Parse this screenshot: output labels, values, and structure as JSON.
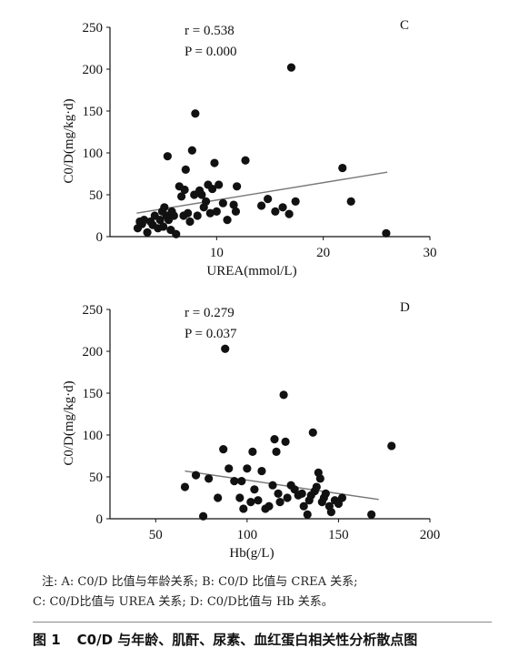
{
  "chart_data": [
    {
      "type": "scatter",
      "panel_label": "C",
      "annotation_r": "r = 0.538",
      "annotation_p": "P = 0.000",
      "xlabel": "UREA(mmol/L)",
      "ylabel": "C0/D(mg/kg·d)",
      "xlim": [
        0,
        30
      ],
      "ylim": [
        0,
        250
      ],
      "xticks": [
        "10",
        "20",
        "30"
      ],
      "yticks": [
        "0",
        "50",
        "100",
        "150",
        "200",
        "250"
      ],
      "trend_line": {
        "x": [
          2.5,
          26
        ],
        "y": [
          28,
          77
        ]
      },
      "points": [
        {
          "x": 2.6,
          "y": 10
        },
        {
          "x": 2.8,
          "y": 18
        },
        {
          "x": 3.0,
          "y": 15
        },
        {
          "x": 3.2,
          "y": 20
        },
        {
          "x": 3.5,
          "y": 5
        },
        {
          "x": 3.8,
          "y": 18
        },
        {
          "x": 4.0,
          "y": 14
        },
        {
          "x": 4.2,
          "y": 25
        },
        {
          "x": 4.5,
          "y": 10
        },
        {
          "x": 4.7,
          "y": 20
        },
        {
          "x": 4.9,
          "y": 30
        },
        {
          "x": 5.0,
          "y": 12
        },
        {
          "x": 5.1,
          "y": 35
        },
        {
          "x": 5.3,
          "y": 25
        },
        {
          "x": 5.4,
          "y": 96
        },
        {
          "x": 5.5,
          "y": 20
        },
        {
          "x": 5.7,
          "y": 8
        },
        {
          "x": 5.8,
          "y": 30
        },
        {
          "x": 6.0,
          "y": 25
        },
        {
          "x": 6.2,
          "y": 3
        },
        {
          "x": 6.5,
          "y": 60
        },
        {
          "x": 6.7,
          "y": 48
        },
        {
          "x": 6.9,
          "y": 25
        },
        {
          "x": 7.0,
          "y": 56
        },
        {
          "x": 7.1,
          "y": 80
        },
        {
          "x": 7.3,
          "y": 28
        },
        {
          "x": 7.5,
          "y": 18
        },
        {
          "x": 7.7,
          "y": 103
        },
        {
          "x": 7.9,
          "y": 50
        },
        {
          "x": 8.0,
          "y": 147
        },
        {
          "x": 8.2,
          "y": 25
        },
        {
          "x": 8.4,
          "y": 55
        },
        {
          "x": 8.6,
          "y": 50
        },
        {
          "x": 8.8,
          "y": 35
        },
        {
          "x": 9.0,
          "y": 42
        },
        {
          "x": 9.2,
          "y": 62
        },
        {
          "x": 9.4,
          "y": 28
        },
        {
          "x": 9.6,
          "y": 57
        },
        {
          "x": 9.8,
          "y": 88
        },
        {
          "x": 10.0,
          "y": 30
        },
        {
          "x": 10.2,
          "y": 62
        },
        {
          "x": 10.6,
          "y": 40
        },
        {
          "x": 11.0,
          "y": 20
        },
        {
          "x": 11.6,
          "y": 38
        },
        {
          "x": 11.8,
          "y": 30
        },
        {
          "x": 11.9,
          "y": 60
        },
        {
          "x": 12.7,
          "y": 91
        },
        {
          "x": 14.2,
          "y": 37
        },
        {
          "x": 14.8,
          "y": 45
        },
        {
          "x": 15.5,
          "y": 30
        },
        {
          "x": 16.2,
          "y": 35
        },
        {
          "x": 16.8,
          "y": 27
        },
        {
          "x": 17.0,
          "y": 202
        },
        {
          "x": 17.4,
          "y": 42
        },
        {
          "x": 21.8,
          "y": 82
        },
        {
          "x": 22.6,
          "y": 42
        },
        {
          "x": 25.9,
          "y": 4
        }
      ]
    },
    {
      "type": "scatter",
      "panel_label": "D",
      "annotation_r": "r = 0.279",
      "annotation_p": "P = 0.037",
      "xlabel": "Hb(g/L)",
      "ylabel": "C0/D(mg/kg·d)",
      "xlim": [
        25,
        200
      ],
      "ylim": [
        0,
        250
      ],
      "xticks": [
        "50",
        "100",
        "150",
        "200"
      ],
      "yticks": [
        "0",
        "50",
        "100",
        "150",
        "200",
        "250"
      ],
      "trend_line": {
        "x": [
          66,
          172
        ],
        "y": [
          57,
          23
        ]
      },
      "points": [
        {
          "x": 66,
          "y": 38
        },
        {
          "x": 72,
          "y": 52
        },
        {
          "x": 76,
          "y": 3
        },
        {
          "x": 79,
          "y": 48
        },
        {
          "x": 84,
          "y": 25
        },
        {
          "x": 87,
          "y": 83
        },
        {
          "x": 88,
          "y": 203
        },
        {
          "x": 90,
          "y": 60
        },
        {
          "x": 93,
          "y": 45
        },
        {
          "x": 96,
          "y": 25
        },
        {
          "x": 97,
          "y": 45
        },
        {
          "x": 98,
          "y": 12
        },
        {
          "x": 100,
          "y": 60
        },
        {
          "x": 102,
          "y": 20
        },
        {
          "x": 103,
          "y": 80
        },
        {
          "x": 104,
          "y": 35
        },
        {
          "x": 106,
          "y": 22
        },
        {
          "x": 108,
          "y": 57
        },
        {
          "x": 110,
          "y": 12
        },
        {
          "x": 112,
          "y": 15
        },
        {
          "x": 114,
          "y": 40
        },
        {
          "x": 115,
          "y": 95
        },
        {
          "x": 116,
          "y": 80
        },
        {
          "x": 117,
          "y": 30
        },
        {
          "x": 118,
          "y": 20
        },
        {
          "x": 120,
          "y": 148
        },
        {
          "x": 121,
          "y": 92
        },
        {
          "x": 122,
          "y": 25
        },
        {
          "x": 124,
          "y": 40
        },
        {
          "x": 126,
          "y": 35
        },
        {
          "x": 128,
          "y": 28
        },
        {
          "x": 130,
          "y": 30
        },
        {
          "x": 131,
          "y": 15
        },
        {
          "x": 133,
          "y": 5
        },
        {
          "x": 134,
          "y": 22
        },
        {
          "x": 135,
          "y": 28
        },
        {
          "x": 136,
          "y": 103
        },
        {
          "x": 137,
          "y": 33
        },
        {
          "x": 138,
          "y": 38
        },
        {
          "x": 139,
          "y": 55
        },
        {
          "x": 140,
          "y": 48
        },
        {
          "x": 141,
          "y": 20
        },
        {
          "x": 142,
          "y": 25
        },
        {
          "x": 143,
          "y": 30
        },
        {
          "x": 145,
          "y": 15
        },
        {
          "x": 146,
          "y": 8
        },
        {
          "x": 148,
          "y": 22
        },
        {
          "x": 150,
          "y": 18
        },
        {
          "x": 152,
          "y": 25
        },
        {
          "x": 168,
          "y": 5
        },
        {
          "x": 179,
          "y": 87
        }
      ]
    }
  ],
  "note_line1": "注: A: C0/D 比值与年龄关系; B: C0/D 比值与 CREA 关系;",
  "note_line2": "C: C0/D比值与 UREA 关系; D: C0/D比值与 Hb 关系。",
  "caption_label": "图 1",
  "caption_text": "C0/D 与年龄、肌酐、尿素、血红蛋白相关性分析散点图"
}
